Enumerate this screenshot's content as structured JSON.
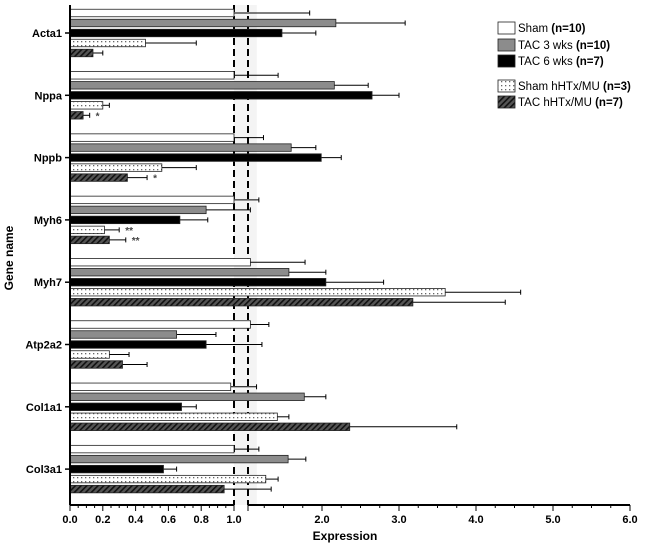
{
  "chart_data": {
    "type": "bar",
    "orientation": "horizontal",
    "xlabel": "Expression",
    "ylabel": "Gene name",
    "x_axis": {
      "broken": true,
      "segments": [
        {
          "range": [
            0.0,
            1.0
          ],
          "ticks": [
            "0.0",
            "0.2",
            "0.4",
            "0.6",
            "0.8",
            "1.0"
          ]
        },
        {
          "range": [
            1.05,
            6.0
          ],
          "ticks": [
            "2.0",
            "3.0",
            "4.0",
            "5.0",
            "6.0"
          ]
        }
      ]
    },
    "reference_lines": [
      1.0
    ],
    "categories": [
      "Acta1",
      "Nppa",
      "Nppb",
      "Myh6",
      "Myh7",
      "Atp2a2",
      "Col1a1",
      "Col3a1"
    ],
    "series": [
      {
        "name": "Sham (n=10)",
        "label": "Sham",
        "n": "(n=10)",
        "pattern": "white",
        "values": [
          1.0,
          1.0,
          1.0,
          1.0,
          1.07,
          1.07,
          0.98,
          1.0
        ],
        "error": [
          1.84,
          1.43,
          1.24,
          1.18,
          1.78,
          1.31,
          1.15,
          1.18
        ]
      },
      {
        "name": "TAC 3 wks (n=10)",
        "label": "TAC 3 wks",
        "n": "(n=10)",
        "pattern": "gray",
        "values": [
          2.18,
          2.16,
          1.6,
          0.83,
          1.57,
          0.65,
          1.77,
          1.56
        ],
        "error": [
          3.08,
          2.6,
          1.92,
          1.07,
          2.05,
          0.89,
          2.05,
          1.79
        ]
      },
      {
        "name": "TAC 6 wks (n=7)",
        "label": "TAC 6 wks",
        "n": "(n=7)",
        "pattern": "black",
        "values": [
          1.48,
          2.65,
          1.99,
          0.67,
          2.05,
          0.83,
          0.68,
          0.57
        ],
        "error": [
          1.92,
          3.0,
          2.25,
          0.84,
          2.8,
          1.22,
          0.77,
          0.65
        ]
      },
      {
        "name": "Sham hHTx/MU (n=3)",
        "label": "Sham hHTx/MU",
        "n": "(n=3)",
        "pattern": "dotted",
        "values": [
          0.46,
          0.2,
          0.56,
          0.21,
          3.6,
          0.24,
          1.42,
          1.27
        ],
        "error": [
          0.77,
          0.24,
          0.77,
          0.3,
          4.58,
          0.36,
          1.57,
          1.43
        ]
      },
      {
        "name": "TAC hHTx/MU (n=7)",
        "label": "TAC hHTx/MU",
        "n": "(n=7)",
        "pattern": "hatched",
        "values": [
          0.14,
          0.08,
          0.35,
          0.24,
          3.18,
          0.32,
          2.36,
          0.94
        ],
        "error": [
          0.2,
          0.12,
          0.47,
          0.34,
          4.38,
          0.47,
          3.75,
          1.34
        ]
      }
    ],
    "annotations": [
      {
        "category": "Nppa",
        "series": 4,
        "text": "*"
      },
      {
        "category": "Nppb",
        "series": 4,
        "text": "*"
      },
      {
        "category": "Myh6",
        "series": 3,
        "text": "**"
      },
      {
        "category": "Myh6",
        "series": 4,
        "text": "**"
      }
    ],
    "legend_position": "top-right",
    "colors": {
      "gray": "#8c8c8c",
      "black": "#000000",
      "white": "#ffffff"
    }
  }
}
